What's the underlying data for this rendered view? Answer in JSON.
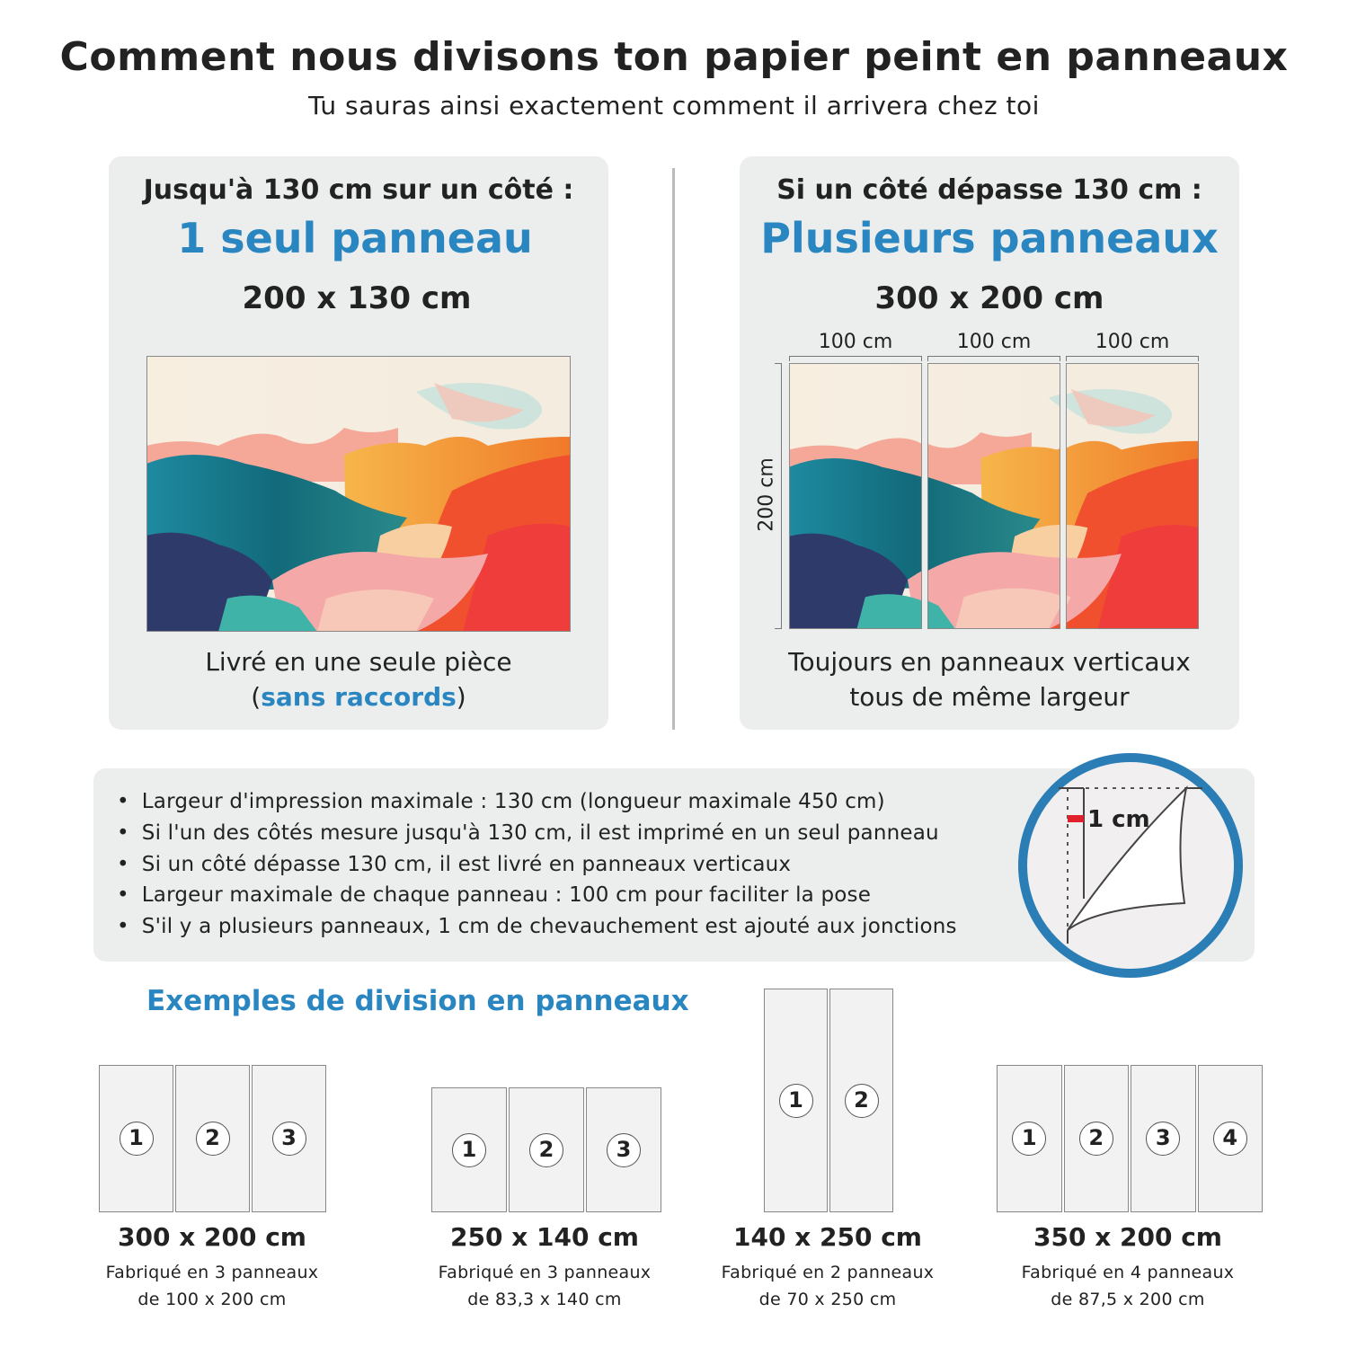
{
  "header": {
    "title": "Comment nous divisons ton papier peint en panneaux",
    "subtitle": "Tu sauras ainsi exactement comment il arrivera chez toi"
  },
  "left_card": {
    "condition": "Jusqu'à 130 cm sur un côté :",
    "headline": "1 seul panneau",
    "size": "200 x 130 cm",
    "caption_line1": "Livré en une seule pièce",
    "caption_open": "(",
    "caption_highlight": "sans raccords",
    "caption_close": ")"
  },
  "right_card": {
    "condition": "Si un côté dépasse 130 cm :",
    "headline": "Plusieurs panneaux",
    "size": "300 x 200 cm",
    "panel_widths": [
      "100 cm",
      "100 cm",
      "100 cm"
    ],
    "height_label": "200 cm",
    "caption_line1": "Toujours en panneaux verticaux",
    "caption_line2": "tous de même largeur"
  },
  "info": {
    "bullets": [
      "Largeur d'impression maximale : 130 cm (longueur maximale 450 cm)",
      "Si l'un des côtés mesure jusqu'à 130 cm, il est imprimé en un seul panneau",
      "Si un côté dépasse 130 cm, il est livré en panneaux verticaux",
      "Largeur maximale de chaque panneau : 100 cm pour faciliter la pose",
      "S'il y a plusieurs panneaux, 1 cm de chevauchement est ajouté aux jonctions"
    ],
    "overlap_label": "1 cm"
  },
  "examples": {
    "title": "Exemples de division en panneaux",
    "items": [
      {
        "size": "300 x 200 cm",
        "line1": "Fabriqué en 3 panneaux",
        "line2": "de 100 x 200 cm",
        "panels": [
          "1",
          "2",
          "3"
        ]
      },
      {
        "size": "250 x 140 cm",
        "line1": "Fabriqué en 3 panneaux",
        "line2": "de 83,3 x 140 cm",
        "panels": [
          "1",
          "2",
          "3"
        ]
      },
      {
        "size": "140 x 250 cm",
        "line1": "Fabriqué en 2 panneaux",
        "line2": "de 70 x 250 cm",
        "panels": [
          "1",
          "2"
        ]
      },
      {
        "size": "350 x 200 cm",
        "line1": "Fabriqué en 4 panneaux",
        "line2": "de 87,5 x 200 cm",
        "panels": [
          "1",
          "2",
          "3",
          "4"
        ]
      }
    ]
  },
  "colors": {
    "accent": "#2a86c0",
    "card_bg": "#eceeee",
    "circle": "#2a7db5",
    "overlap_marker": "#e0202a"
  }
}
